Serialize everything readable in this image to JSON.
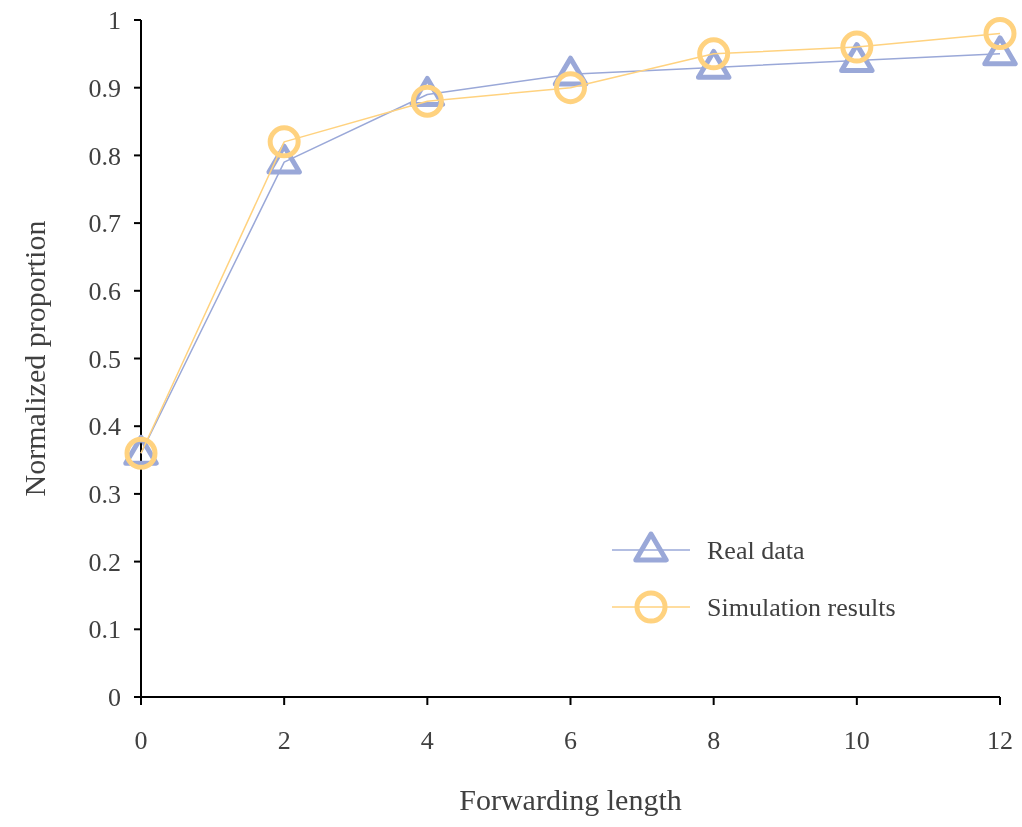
{
  "chart_data": {
    "type": "line",
    "xlabel": "Forwarding length",
    "ylabel": "Normalized proportion",
    "x": [
      0,
      2,
      4,
      6,
      8,
      10,
      12
    ],
    "series": [
      {
        "name": "Real data",
        "color": "#9aa8d8",
        "marker": "triangle",
        "values": [
          0.36,
          0.79,
          0.89,
          0.92,
          0.93,
          0.94,
          0.95
        ]
      },
      {
        "name": "Simulation results",
        "color": "#ffd27f",
        "marker": "circle",
        "values": [
          0.36,
          0.82,
          0.88,
          0.9,
          0.95,
          0.96,
          0.98
        ]
      }
    ],
    "xlim": [
      0,
      12
    ],
    "xticks": [
      0,
      2,
      4,
      6,
      8,
      10,
      12
    ],
    "ylim": [
      0,
      1
    ],
    "yticks": [
      0,
      0.1,
      0.2,
      0.3,
      0.4,
      0.5,
      0.6,
      0.7,
      0.8,
      0.9,
      1
    ],
    "grid": false,
    "legend": "bottom right",
    "line_style": "solid"
  }
}
